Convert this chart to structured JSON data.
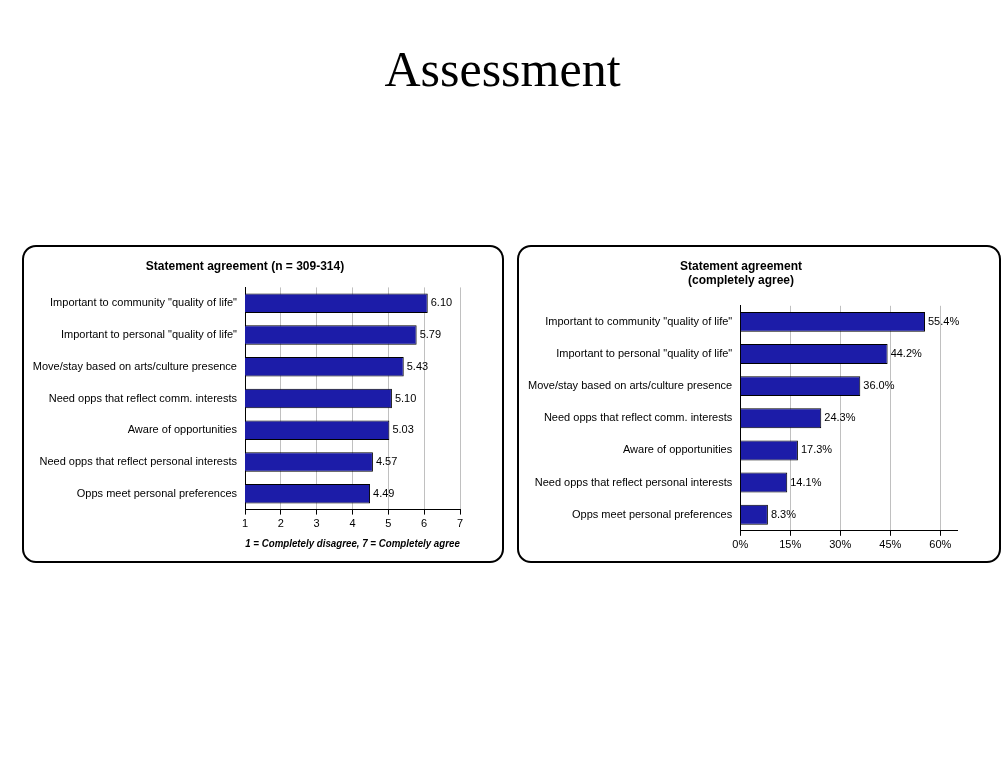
{
  "chart_data": [
    {
      "type": "other",
      "title": "Assessment"
    },
    {
      "type": "bar",
      "orientation": "horizontal",
      "title": "Statement agreement (n = 309-314)",
      "xlabel": "1 = Completely disagree, 7 = Completely agree",
      "categories": [
        "Important to community \"quality of life\"",
        "Important to personal \"quality of life\"",
        "Move/stay based on arts/culture presence",
        "Need opps that reflect comm. interests",
        "Aware of opportunities",
        "Need opps that reflect personal interests",
        "Opps meet personal preferences"
      ],
      "values": [
        6.1,
        5.79,
        5.43,
        5.1,
        5.03,
        4.57,
        4.49
      ],
      "value_labels": [
        "6.10",
        "5.79",
        "5.43",
        "5.10",
        "5.03",
        "4.57",
        "4.49"
      ],
      "color": "#1c1ca8",
      "xlim": [
        1,
        7
      ],
      "xticks": [
        1,
        2,
        3,
        4,
        5,
        6,
        7
      ],
      "grid": "x",
      "legend": false
    },
    {
      "type": "bar",
      "orientation": "horizontal",
      "title": "Statement agreement",
      "subtitle": "(completely agree)",
      "categories": [
        "Important to community \"quality of life\"",
        "Important to personal \"quality of life\"",
        "Move/stay based on arts/culture presence",
        "Need opps that reflect comm. interests",
        "Aware of opportunities",
        "Need opps that reflect personal interests",
        "Opps meet personal preferences"
      ],
      "values": [
        55.4,
        44.2,
        36.0,
        24.3,
        17.3,
        14.1,
        8.3
      ],
      "value_labels": [
        "55.4%",
        "44.2%",
        "36.0%",
        "24.3%",
        "17.3%",
        "14.1%",
        "8.3%"
      ],
      "color": "#1c1ca8",
      "xlim": [
        0,
        65
      ],
      "xticks": [
        {
          "value": 0,
          "label": "0%"
        },
        {
          "value": 15,
          "label": "15%"
        },
        {
          "value": 30,
          "label": "30%"
        },
        {
          "value": 45,
          "label": "45%"
        },
        {
          "value": 60,
          "label": "60%"
        }
      ],
      "grid": "x",
      "legend": false
    }
  ]
}
